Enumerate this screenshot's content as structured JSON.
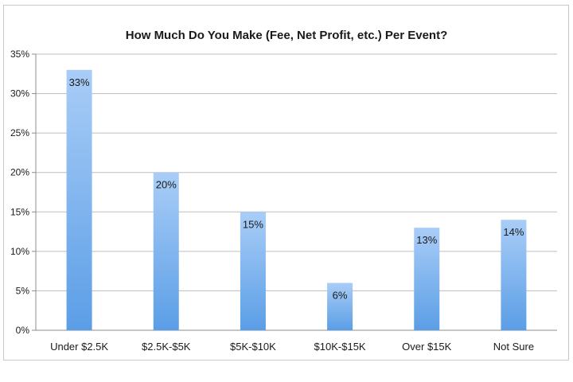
{
  "chart_data": {
    "type": "bar",
    "title": "How Much Do You Make (Fee, Net Profit, etc.) Per Event?",
    "xlabel": "",
    "ylabel": "",
    "categories": [
      "Under $2.5K",
      "$2.5K-$5K",
      "$5K-$10K",
      "$10K-$15K",
      "Over $15K",
      "Not Sure"
    ],
    "values": [
      33,
      20,
      15,
      6,
      13,
      14
    ],
    "data_labels": [
      "33%",
      "20%",
      "15%",
      "6%",
      "13%",
      "14%"
    ],
    "ylim": [
      0,
      35
    ],
    "yticks": [
      0,
      5,
      10,
      15,
      20,
      25,
      30,
      35
    ],
    "ytick_labels": [
      "0%",
      "5%",
      "10%",
      "15%",
      "20%",
      "25%",
      "30%",
      "35%"
    ],
    "grid": true,
    "legend": "none",
    "colors": {
      "bar_top": "#a9cdf7",
      "bar_bottom": "#5b9ee6",
      "grid": "#bdbdbd",
      "axis": "#8c8c8c"
    }
  }
}
